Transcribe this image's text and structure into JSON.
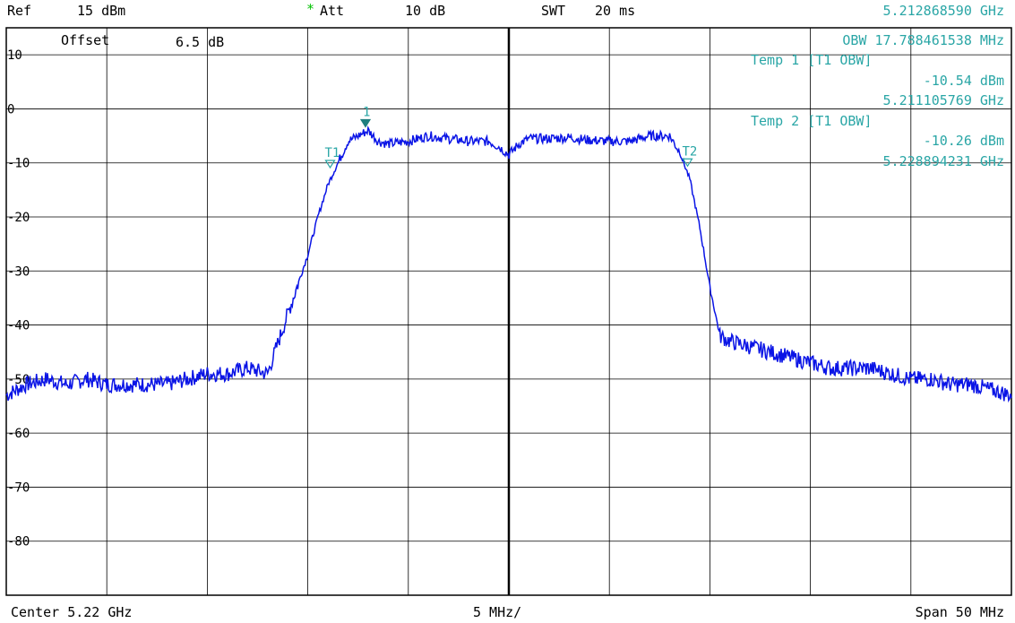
{
  "header": {
    "ref_label": "Ref",
    "ref_value": "15 dBm",
    "att_star": "*",
    "att_label": "Att",
    "att_value": "10 dB",
    "swt_label": "SWT",
    "swt_value": "20 ms",
    "marker_freq": "5.212868590 GHz"
  },
  "plot_text": {
    "offset_label": "Offset",
    "offset_value": "6.5 dB"
  },
  "readout": {
    "obw_line": "OBW 17.788461538 MHz",
    "temp1_label": "Temp 1 [T1 OBW]",
    "temp1_level": "-10.54 dBm",
    "temp1_freq": "5.211105769 GHz",
    "temp2_label": "Temp 2 [T1 OBW]",
    "temp2_level": "-10.26 dBm",
    "temp2_freq": "5.228894231 GHz"
  },
  "footer": {
    "center": "Center 5.22 GHz",
    "div": "5 MHz/",
    "span": "Span 50 MHz"
  },
  "colors": {
    "trace": "#0a14e6",
    "readout": "#2aa6a6",
    "marker": "#1f7f7f",
    "grid": "#000000"
  },
  "chart_data": {
    "type": "line",
    "title": "",
    "xlabel": "",
    "ylabel": "",
    "x_unit": "MHz",
    "xlim": [
      5195,
      5245
    ],
    "ylim": [
      -90,
      15
    ],
    "y_ticks": [
      10,
      0,
      -10,
      -20,
      -30,
      -40,
      -50,
      -60,
      -70,
      -80
    ],
    "y_tick_labels": [
      "10",
      "0",
      "-10",
      "-20",
      "-30",
      "-40",
      "-50",
      "-60",
      "-70",
      "-80"
    ],
    "grid": true,
    "series": [
      {
        "name": "",
        "x": [
          5195,
          5196,
          5197,
          5198,
          5199,
          5200,
          5201,
          5202,
          5203,
          5204,
          5205,
          5206,
          5207,
          5208,
          5209,
          5210,
          5210.5,
          5211,
          5211.5,
          5212,
          5212.5,
          5213,
          5213.5,
          5214,
          5215,
          5216,
          5217,
          5218,
          5219,
          5219.5,
          5220,
          5220.5,
          5221,
          5222,
          5223,
          5224,
          5225,
          5226,
          5227,
          5228,
          5228.5,
          5229,
          5229.5,
          5230,
          5230.5,
          5231,
          5232,
          5233,
          5234,
          5235,
          5236,
          5237,
          5238,
          5239,
          5240,
          5241,
          5242,
          5243,
          5244,
          5245
        ],
        "y": [
          -53,
          -51,
          -50,
          -51,
          -50,
          -51,
          -51,
          -51,
          -51,
          -50,
          -49,
          -49,
          -48,
          -49,
          -38,
          -27,
          -20,
          -14,
          -10,
          -6,
          -5,
          -4,
          -6,
          -6.5,
          -6,
          -5,
          -5.5,
          -6,
          -6,
          -7,
          -8.5,
          -6.5,
          -5.5,
          -5.5,
          -5.3,
          -5.8,
          -6,
          -6,
          -5,
          -5,
          -8,
          -13,
          -22,
          -33,
          -42,
          -43,
          -44,
          -45,
          -46,
          -47,
          -48,
          -48,
          -48,
          -49,
          -50,
          -50,
          -51,
          -51,
          -52,
          -53
        ]
      }
    ],
    "markers": [
      {
        "label": "1",
        "x": 5212.87,
        "y": -3,
        "filled": true
      },
      {
        "label": "T1",
        "x": 5211.11,
        "y": -10.54,
        "filled": false
      },
      {
        "label": "T2",
        "x": 5228.89,
        "y": -10.26,
        "filled": false
      }
    ]
  }
}
